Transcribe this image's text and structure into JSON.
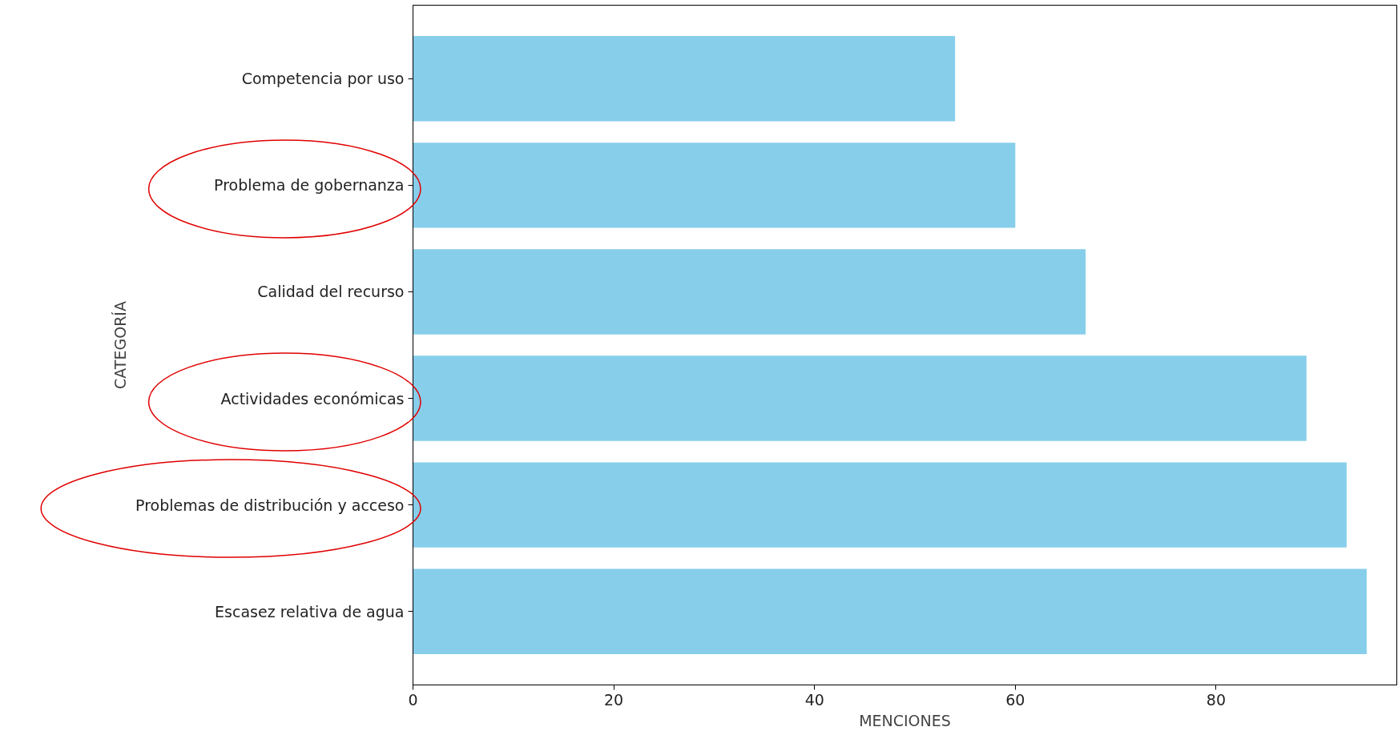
{
  "chart_data": {
    "type": "bar",
    "orientation": "horizontal",
    "xlabel": "MENCIONES",
    "ylabel": "CATEGORÍA",
    "categories": [
      "Competencia por uso",
      "Problema de gobernanza",
      "Calidad del recurso",
      "Actividades económicas",
      "Problemas de distribución y acceso",
      "Escasez relativa de agua"
    ],
    "values": [
      54,
      60,
      67,
      89,
      93,
      95
    ],
    "color": "#87ceeb",
    "xlim": [
      0,
      98
    ],
    "xticks": [
      0,
      20,
      40,
      60,
      80
    ],
    "grid": false
  }
}
